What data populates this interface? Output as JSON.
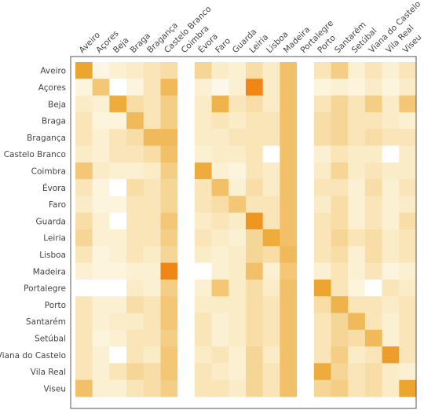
{
  "chart_data": {
    "type": "heatmap",
    "title": "",
    "xlabel": "",
    "ylabel": "",
    "grid": false,
    "legend": "none",
    "value_range": [
      0,
      1
    ],
    "color_scale": [
      "#ffffff",
      "#fbecc8",
      "#f3c776",
      "#eca52e",
      "#f07e10"
    ],
    "x_labels": [
      "Aveiro",
      "Açores",
      "Beja",
      "Braga",
      "Bragança",
      "Castelo Branco",
      "Coimbra",
      "Évora",
      "Faro",
      "Guarda",
      "Leiria",
      "Lisboa",
      "Madeira",
      "Portalegre",
      "Porto",
      "Santarém",
      "Setúbal",
      "Viana do Castelo",
      "Vila Real",
      "Viseu"
    ],
    "y_labels": [
      "Aveiro",
      "Açores",
      "Beja",
      "Braga",
      "Bragança",
      "Castelo Branco",
      "Coimbra",
      "Évora",
      "Faro",
      "Guarda",
      "Leiria",
      "Lisboa",
      "Madeira",
      "Portalegre",
      "Porto",
      "Santarém",
      "Setúbal",
      "Viana do Castelo",
      "Vila Real",
      "Viseu"
    ],
    "values": [
      [
        0.75,
        0.12,
        0.2,
        0.25,
        0.3,
        0.35,
        0,
        0.4,
        0.25,
        0.2,
        0.35,
        0.25,
        0.55,
        0,
        0.3,
        0.45,
        0.2,
        0.3,
        0.2,
        0.3
      ],
      [
        0.15,
        0.5,
        0.0,
        0.15,
        0.3,
        0.6,
        0,
        0.2,
        0.1,
        0.2,
        0.95,
        0.25,
        0.55,
        0,
        0.15,
        0.2,
        0.15,
        0.25,
        0.15,
        0.25
      ],
      [
        0.25,
        0.2,
        0.7,
        0.35,
        0.3,
        0.45,
        0,
        0.25,
        0.65,
        0.3,
        0.35,
        0.25,
        0.55,
        0,
        0.3,
        0.4,
        0.3,
        0.45,
        0.25,
        0.5
      ],
      [
        0.3,
        0.15,
        0.15,
        0.6,
        0.3,
        0.45,
        0,
        0.25,
        0.3,
        0.25,
        0.3,
        0.3,
        0.55,
        0,
        0.35,
        0.4,
        0.3,
        0.3,
        0.25,
        0.2
      ],
      [
        0.3,
        0.2,
        0.3,
        0.35,
        0.6,
        0.6,
        0,
        0.25,
        0.25,
        0.3,
        0.3,
        0.3,
        0.55,
        0,
        0.35,
        0.4,
        0.3,
        0.35,
        0.3,
        0.3
      ],
      [
        0.25,
        0.2,
        0.3,
        0.3,
        0.35,
        0.55,
        0,
        0.2,
        0.25,
        0.25,
        0.3,
        0.0,
        0.55,
        0,
        0.2,
        0.3,
        0.25,
        0.25,
        0.0,
        0.25
      ],
      [
        0.5,
        0.25,
        0.2,
        0.2,
        0.25,
        0.45,
        0,
        0.7,
        0.2,
        0.15,
        0.3,
        0.25,
        0.55,
        0,
        0.25,
        0.4,
        0.25,
        0.3,
        0.25,
        0.25
      ],
      [
        0.3,
        0.15,
        0.0,
        0.35,
        0.3,
        0.4,
        0,
        0.3,
        0.55,
        0.2,
        0.35,
        0.25,
        0.55,
        0,
        0.3,
        0.3,
        0.2,
        0.35,
        0.2,
        0.3
      ],
      [
        0.25,
        0.15,
        0.15,
        0.3,
        0.3,
        0.4,
        0,
        0.3,
        0.35,
        0.5,
        0.3,
        0.3,
        0.55,
        0,
        0.25,
        0.35,
        0.2,
        0.3,
        0.2,
        0.25
      ],
      [
        0.35,
        0.2,
        0.0,
        0.3,
        0.3,
        0.5,
        0,
        0.25,
        0.3,
        0.25,
        0.85,
        0.3,
        0.55,
        0,
        0.3,
        0.35,
        0.2,
        0.3,
        0.2,
        0.35
      ],
      [
        0.4,
        0.2,
        0.2,
        0.3,
        0.3,
        0.45,
        0,
        0.3,
        0.25,
        0.2,
        0.4,
        0.7,
        0.55,
        0,
        0.3,
        0.4,
        0.3,
        0.35,
        0.25,
        0.3
      ],
      [
        0.3,
        0.15,
        0.2,
        0.3,
        0.25,
        0.4,
        0,
        0.25,
        0.2,
        0.25,
        0.4,
        0.35,
        0.6,
        0,
        0.3,
        0.35,
        0.2,
        0.35,
        0.25,
        0.3
      ],
      [
        0.2,
        0.15,
        0.15,
        0.2,
        0.2,
        0.95,
        0,
        0.0,
        0.2,
        0.25,
        0.55,
        0.2,
        0.5,
        0,
        0.2,
        0.3,
        0.2,
        0.3,
        0.15,
        0.2
      ],
      [
        0.0,
        0.0,
        0.0,
        0.25,
        0.2,
        0.45,
        0,
        0.2,
        0.5,
        0.25,
        0.35,
        0.25,
        0.55,
        0,
        0.75,
        0.3,
        0.15,
        0.0,
        0.3,
        0.25
      ],
      [
        0.3,
        0.2,
        0.2,
        0.35,
        0.3,
        0.5,
        0,
        0.25,
        0.25,
        0.25,
        0.35,
        0.3,
        0.55,
        0,
        0.35,
        0.65,
        0.3,
        0.3,
        0.25,
        0.3
      ],
      [
        0.3,
        0.2,
        0.25,
        0.25,
        0.3,
        0.5,
        0,
        0.3,
        0.2,
        0.25,
        0.35,
        0.3,
        0.55,
        0,
        0.3,
        0.4,
        0.6,
        0.3,
        0.2,
        0.3
      ],
      [
        0.3,
        0.15,
        0.2,
        0.3,
        0.3,
        0.45,
        0,
        0.3,
        0.2,
        0.25,
        0.35,
        0.3,
        0.55,
        0,
        0.3,
        0.4,
        0.35,
        0.6,
        0.2,
        0.3
      ],
      [
        0.3,
        0.2,
        0.0,
        0.3,
        0.25,
        0.5,
        0,
        0.25,
        0.3,
        0.2,
        0.4,
        0.25,
        0.55,
        0,
        0.3,
        0.45,
        0.25,
        0.3,
        0.8,
        0.3
      ],
      [
        0.3,
        0.2,
        0.3,
        0.4,
        0.35,
        0.5,
        0,
        0.3,
        0.25,
        0.2,
        0.4,
        0.3,
        0.55,
        0,
        0.7,
        0.4,
        0.3,
        0.35,
        0.25,
        0.2
      ],
      [
        0.55,
        0.2,
        0.2,
        0.3,
        0.35,
        0.45,
        0,
        0.3,
        0.3,
        0.25,
        0.4,
        0.3,
        0.55,
        0,
        0.4,
        0.45,
        0.3,
        0.35,
        0.25,
        0.75
      ]
    ]
  }
}
